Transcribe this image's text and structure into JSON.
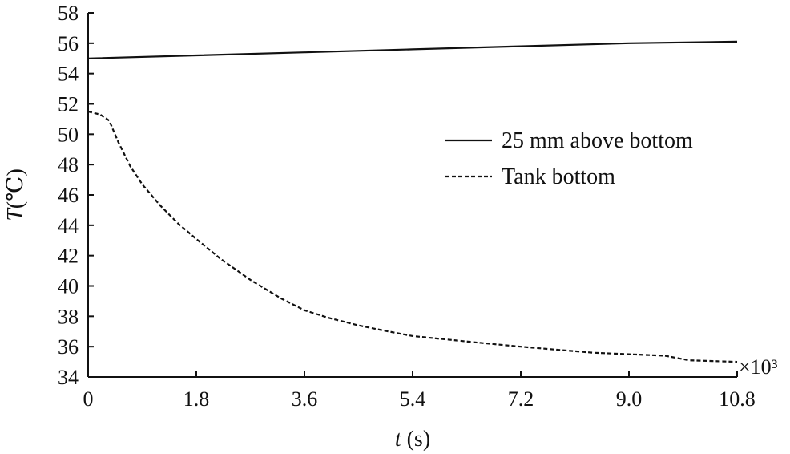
{
  "chart_data": {
    "type": "line",
    "xlabel_var": "t",
    "xlabel_unit": " (s)",
    "ylabel_var": "T",
    "ylabel_unit": "(℃)",
    "x_multiplier": "×10³",
    "xlim": [
      0,
      10.8
    ],
    "ylim": [
      34,
      58
    ],
    "x_ticks": [
      "0",
      "1.8",
      "3.6",
      "5.4",
      "7.2",
      "9.0",
      "10.8"
    ],
    "x_tick_values": [
      0,
      1.8,
      3.6,
      5.4,
      7.2,
      9.0,
      10.8
    ],
    "y_ticks": [
      "34",
      "36",
      "38",
      "40",
      "42",
      "44",
      "46",
      "48",
      "50",
      "52",
      "54",
      "56",
      "58"
    ],
    "y_tick_values": [
      34,
      36,
      38,
      40,
      42,
      44,
      46,
      48,
      50,
      52,
      54,
      56,
      58
    ],
    "grid": false,
    "legend_position": "right-center",
    "series": [
      {
        "name": "25 mm above bottom",
        "style": "solid",
        "x": [
          0,
          1.8,
          3.6,
          5.4,
          7.2,
          9.0,
          10.8
        ],
        "y": [
          55.0,
          55.2,
          55.4,
          55.6,
          55.8,
          56.0,
          56.1
        ]
      },
      {
        "name": "Tank bottom",
        "style": "dashed",
        "x": [
          0,
          0.1,
          0.2,
          0.35,
          0.5,
          0.7,
          0.9,
          1.2,
          1.5,
          1.8,
          2.2,
          2.7,
          3.2,
          3.6,
          4.0,
          4.5,
          5.0,
          5.4,
          5.9,
          6.4,
          7.2,
          7.8,
          8.4,
          9.0,
          9.6,
          10.0,
          10.8
        ],
        "y": [
          51.5,
          51.4,
          51.3,
          50.9,
          49.5,
          47.9,
          46.7,
          45.3,
          44.1,
          43.1,
          41.8,
          40.4,
          39.2,
          38.4,
          37.9,
          37.4,
          37.0,
          36.7,
          36.5,
          36.3,
          36.0,
          35.8,
          35.6,
          35.5,
          35.4,
          35.1,
          35.0
        ]
      }
    ]
  }
}
